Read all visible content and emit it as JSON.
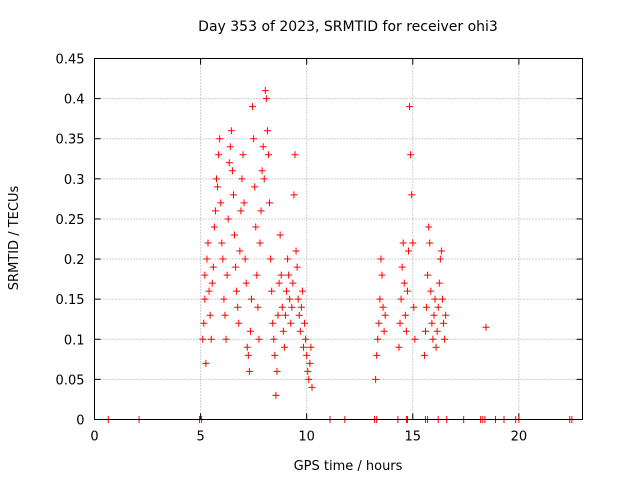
{
  "chart_data": {
    "type": "scatter",
    "title": "Day 353 of 2023, SRMTID for receiver ohi3",
    "xlabel": "GPS time / hours",
    "ylabel": "SRMTID / TECUs",
    "xlim": [
      0,
      23
    ],
    "ylim": [
      0,
      0.45
    ],
    "grid": true,
    "marker": "+",
    "color": "#ff0000",
    "x_ticks": [
      {
        "value": 0,
        "label": "0"
      },
      {
        "value": 5,
        "label": "5"
      },
      {
        "value": 10,
        "label": "10"
      },
      {
        "value": 15,
        "label": "15"
      },
      {
        "value": 20,
        "label": "20"
      }
    ],
    "y_ticks": [
      {
        "value": 0,
        "label": "0"
      },
      {
        "value": 0.05,
        "label": "0.05"
      },
      {
        "value": 0.1,
        "label": "0.1"
      },
      {
        "value": 0.15,
        "label": "0.15"
      },
      {
        "value": 0.2,
        "label": "0.2"
      },
      {
        "value": 0.25,
        "label": "0.25"
      },
      {
        "value": 0.3,
        "label": "0.3"
      },
      {
        "value": 0.35,
        "label": "0.35"
      },
      {
        "value": 0.4,
        "label": "0.4"
      },
      {
        "value": 0.45,
        "label": "0.45"
      }
    ],
    "series": [
      {
        "name": "SRMTID",
        "points": [
          [
            0.65,
            0
          ],
          [
            2.1,
            0
          ],
          [
            4.95,
            0
          ],
          [
            5.05,
            0
          ],
          [
            11.1,
            0
          ],
          [
            11.8,
            0
          ],
          [
            13.2,
            0
          ],
          [
            13.3,
            0
          ],
          [
            14.3,
            0
          ],
          [
            14.7,
            0
          ],
          [
            14.75,
            0
          ],
          [
            15.6,
            0
          ],
          [
            15.7,
            0
          ],
          [
            16.2,
            0
          ],
          [
            16.6,
            0
          ],
          [
            17.4,
            0
          ],
          [
            18.2,
            0
          ],
          [
            18.3,
            0
          ],
          [
            18.4,
            0
          ],
          [
            18.9,
            0
          ],
          [
            19.3,
            0
          ],
          [
            19.85,
            0
          ],
          [
            20.0,
            0
          ],
          [
            22.4,
            0
          ],
          [
            22.5,
            0
          ],
          [
            5.1,
            0.1
          ],
          [
            5.15,
            0.12
          ],
          [
            5.2,
            0.15
          ],
          [
            5.2,
            0.18
          ],
          [
            5.25,
            0.07
          ],
          [
            5.3,
            0.2
          ],
          [
            5.35,
            0.22
          ],
          [
            5.4,
            0.16
          ],
          [
            5.45,
            0.13
          ],
          [
            5.5,
            0.1
          ],
          [
            5.55,
            0.17
          ],
          [
            5.6,
            0.19
          ],
          [
            5.65,
            0.24
          ],
          [
            5.7,
            0.26
          ],
          [
            5.75,
            0.3
          ],
          [
            5.8,
            0.29
          ],
          [
            5.85,
            0.33
          ],
          [
            5.9,
            0.35
          ],
          [
            5.95,
            0.27
          ],
          [
            6.0,
            0.22
          ],
          [
            6.05,
            0.2
          ],
          [
            6.1,
            0.15
          ],
          [
            6.15,
            0.13
          ],
          [
            6.2,
            0.1
          ],
          [
            6.25,
            0.18
          ],
          [
            6.3,
            0.25
          ],
          [
            6.35,
            0.32
          ],
          [
            6.4,
            0.34
          ],
          [
            6.45,
            0.36
          ],
          [
            6.5,
            0.31
          ],
          [
            6.55,
            0.28
          ],
          [
            6.6,
            0.23
          ],
          [
            6.65,
            0.19
          ],
          [
            6.7,
            0.16
          ],
          [
            6.75,
            0.14
          ],
          [
            6.8,
            0.12
          ],
          [
            6.85,
            0.21
          ],
          [
            6.9,
            0.26
          ],
          [
            6.95,
            0.3
          ],
          [
            7.0,
            0.33
          ],
          [
            7.05,
            0.27
          ],
          [
            7.1,
            0.2
          ],
          [
            7.15,
            0.17
          ],
          [
            7.2,
            0.09
          ],
          [
            7.25,
            0.08
          ],
          [
            7.3,
            0.06
          ],
          [
            7.35,
            0.11
          ],
          [
            7.4,
            0.15
          ],
          [
            7.45,
            0.39
          ],
          [
            7.5,
            0.35
          ],
          [
            7.55,
            0.29
          ],
          [
            7.6,
            0.24
          ],
          [
            7.65,
            0.18
          ],
          [
            7.7,
            0.14
          ],
          [
            7.75,
            0.1
          ],
          [
            7.8,
            0.22
          ],
          [
            7.85,
            0.26
          ],
          [
            7.9,
            0.31
          ],
          [
            7.95,
            0.34
          ],
          [
            8.0,
            0.3
          ],
          [
            8.05,
            0.41
          ],
          [
            8.1,
            0.4
          ],
          [
            8.15,
            0.36
          ],
          [
            8.2,
            0.33
          ],
          [
            8.25,
            0.27
          ],
          [
            8.3,
            0.2
          ],
          [
            8.35,
            0.16
          ],
          [
            8.4,
            0.12
          ],
          [
            8.45,
            0.1
          ],
          [
            8.5,
            0.08
          ],
          [
            8.55,
            0.03
          ],
          [
            8.6,
            0.06
          ],
          [
            8.65,
            0.13
          ],
          [
            8.7,
            0.17
          ],
          [
            8.75,
            0.23
          ],
          [
            8.8,
            0.18
          ],
          [
            8.85,
            0.14
          ],
          [
            8.9,
            0.11
          ],
          [
            8.95,
            0.09
          ],
          [
            9.0,
            0.13
          ],
          [
            9.05,
            0.16
          ],
          [
            9.1,
            0.2
          ],
          [
            9.15,
            0.18
          ],
          [
            9.2,
            0.15
          ],
          [
            9.25,
            0.12
          ],
          [
            9.3,
            0.14
          ],
          [
            9.35,
            0.17
          ],
          [
            9.4,
            0.28
          ],
          [
            9.45,
            0.33
          ],
          [
            9.5,
            0.21
          ],
          [
            9.55,
            0.19
          ],
          [
            9.6,
            0.15
          ],
          [
            9.65,
            0.13
          ],
          [
            9.7,
            0.11
          ],
          [
            9.75,
            0.14
          ],
          [
            9.8,
            0.16
          ],
          [
            9.85,
            0.09
          ],
          [
            9.9,
            0.12
          ],
          [
            9.95,
            0.1
          ],
          [
            10.0,
            0.08
          ],
          [
            10.05,
            0.06
          ],
          [
            10.1,
            0.05
          ],
          [
            10.15,
            0.07
          ],
          [
            10.2,
            0.09
          ],
          [
            10.25,
            0.04
          ],
          [
            13.25,
            0.05
          ],
          [
            13.3,
            0.08
          ],
          [
            13.35,
            0.1
          ],
          [
            13.4,
            0.12
          ],
          [
            13.45,
            0.15
          ],
          [
            13.5,
            0.2
          ],
          [
            13.55,
            0.18
          ],
          [
            13.6,
            0.14
          ],
          [
            13.65,
            0.11
          ],
          [
            13.7,
            0.13
          ],
          [
            14.35,
            0.09
          ],
          [
            14.4,
            0.12
          ],
          [
            14.45,
            0.15
          ],
          [
            14.5,
            0.19
          ],
          [
            14.55,
            0.22
          ],
          [
            14.6,
            0.17
          ],
          [
            14.65,
            0.13
          ],
          [
            14.7,
            0.11
          ],
          [
            14.75,
            0.16
          ],
          [
            14.8,
            0.21
          ],
          [
            14.85,
            0.39
          ],
          [
            14.9,
            0.33
          ],
          [
            14.95,
            0.28
          ],
          [
            15.0,
            0.22
          ],
          [
            15.05,
            0.14
          ],
          [
            15.1,
            0.1
          ],
          [
            15.55,
            0.08
          ],
          [
            15.6,
            0.11
          ],
          [
            15.65,
            0.14
          ],
          [
            15.7,
            0.18
          ],
          [
            15.75,
            0.24
          ],
          [
            15.8,
            0.22
          ],
          [
            15.85,
            0.16
          ],
          [
            15.9,
            0.12
          ],
          [
            15.95,
            0.1
          ],
          [
            16.0,
            0.13
          ],
          [
            16.05,
            0.15
          ],
          [
            16.1,
            0.09
          ],
          [
            16.15,
            0.11
          ],
          [
            16.2,
            0.14
          ],
          [
            16.25,
            0.17
          ],
          [
            16.3,
            0.2
          ],
          [
            16.35,
            0.21
          ],
          [
            16.4,
            0.15
          ],
          [
            16.45,
            0.12
          ],
          [
            16.5,
            0.1
          ],
          [
            16.55,
            0.13
          ],
          [
            18.45,
            0.115
          ]
        ]
      }
    ]
  }
}
